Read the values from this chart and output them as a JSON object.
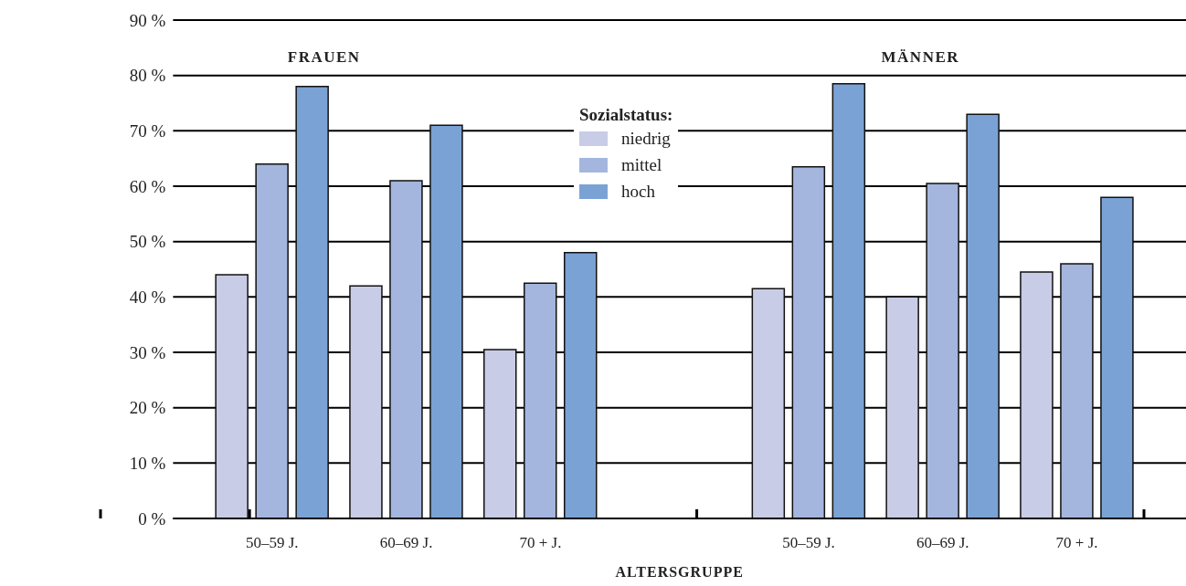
{
  "chart_data": {
    "type": "bar",
    "xlabel": "ALTERSGRUPPE",
    "legend_title": "Sozialstatus:",
    "annotations": [
      "FRAUEN",
      "MÄNNER"
    ],
    "categories": [
      "50–59 J.",
      "60–69 J.",
      "70 + J.",
      null,
      "50–59 J.",
      "60–69 J.",
      "70 + J."
    ],
    "series": [
      {
        "name": "niedrig",
        "color": "#c8cce6",
        "values": [
          44,
          42,
          30.5,
          null,
          41.5,
          40,
          44.5
        ]
      },
      {
        "name": "mittel",
        "color": "#a4b6de",
        "values": [
          64,
          61,
          42.5,
          null,
          63.5,
          60.5,
          46
        ]
      },
      {
        "name": "hoch",
        "color": "#7ba2d4",
        "values": [
          78,
          71,
          48,
          null,
          78.5,
          73,
          58
        ]
      }
    ],
    "ylim": [
      0,
      90
    ],
    "yticks": [
      {
        "value": 0,
        "label": "0 %"
      },
      {
        "value": 10,
        "label": "10 %"
      },
      {
        "value": 20,
        "label": "20 %"
      },
      {
        "value": 30,
        "label": "30 %"
      },
      {
        "value": 40,
        "label": "40 %"
      },
      {
        "value": 50,
        "label": "50 %"
      },
      {
        "value": 60,
        "label": "60 %"
      },
      {
        "value": 70,
        "label": "70 %"
      },
      {
        "value": 80,
        "label": "80 %"
      },
      {
        "value": 90,
        "label": "90 %"
      }
    ],
    "grid": "y",
    "legend": "top"
  }
}
